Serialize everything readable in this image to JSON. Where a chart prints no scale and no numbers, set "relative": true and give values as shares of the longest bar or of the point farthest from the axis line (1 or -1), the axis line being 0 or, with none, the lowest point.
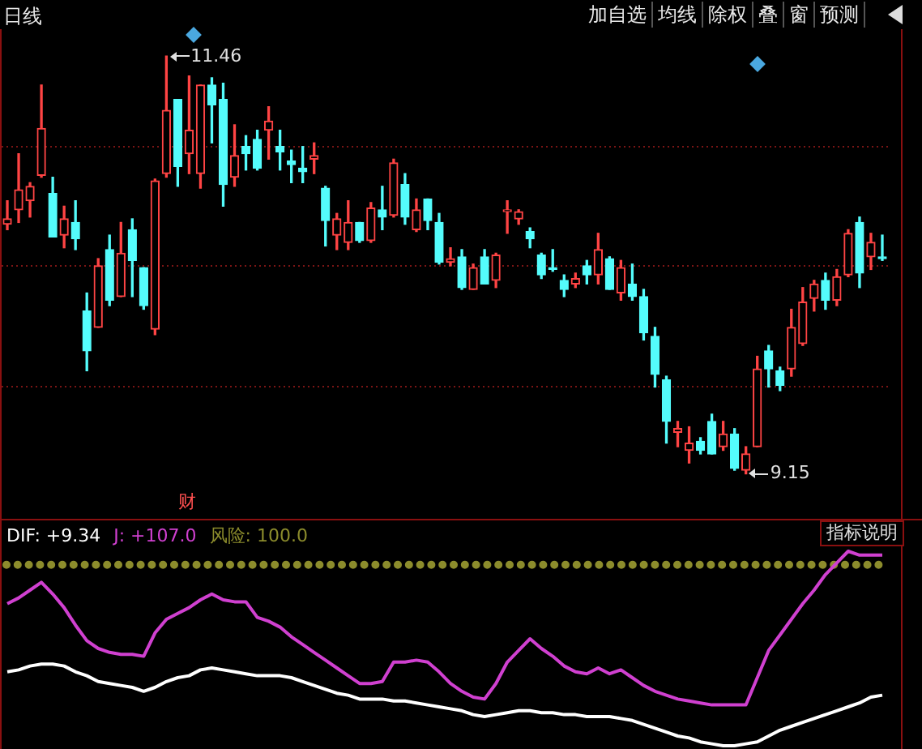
{
  "chart_data": [
    {
      "type": "candlestick",
      "title": "日线",
      "tick_labels": false,
      "grid": "y",
      "categories": [
        null,
        null,
        null,
        null,
        null,
        null,
        null,
        null,
        null,
        null,
        null,
        null,
        null,
        null,
        null,
        null,
        null,
        null,
        null,
        null,
        null,
        null,
        null,
        null,
        null,
        null,
        null,
        null,
        null,
        null,
        null,
        null,
        null,
        null,
        null,
        null,
        null,
        null,
        null,
        null,
        null,
        null,
        null,
        null,
        null,
        null,
        null,
        null,
        null,
        null,
        null,
        null,
        null,
        null,
        null,
        null,
        null,
        null,
        null,
        null,
        null,
        null,
        null,
        null,
        null,
        null,
        null,
        null,
        null,
        null,
        null,
        null,
        null,
        null,
        null,
        null,
        null,
        null
      ],
      "ohlc": [
        [
          10.53,
          10.66,
          10.5,
          10.56
        ],
        [
          10.61,
          10.92,
          10.54,
          10.72
        ],
        [
          10.66,
          10.76,
          10.57,
          10.74
        ],
        [
          10.8,
          11.3,
          10.79,
          11.06
        ],
        [
          10.7,
          10.79,
          10.46,
          10.46
        ],
        [
          10.47,
          10.63,
          10.4,
          10.56
        ],
        [
          10.54,
          10.66,
          10.39,
          10.45
        ],
        [
          10.05,
          10.15,
          9.72,
          9.83
        ],
        [
          9.96,
          10.34,
          9.96,
          10.3
        ],
        [
          10.39,
          10.47,
          10.08,
          10.11
        ],
        [
          10.13,
          10.54,
          10.13,
          10.37
        ],
        [
          10.5,
          10.56,
          10.13,
          10.33
        ],
        [
          10.29,
          10.29,
          10.06,
          10.08
        ],
        [
          9.95,
          10.78,
          9.92,
          10.77
        ],
        [
          10.81,
          11.46,
          10.79,
          11.16
        ],
        [
          11.22,
          11.22,
          10.74,
          10.85
        ],
        [
          10.92,
          11.35,
          10.81,
          11.05
        ],
        [
          10.81,
          11.3,
          10.73,
          11.3
        ],
        [
          11.3,
          11.34,
          10.98,
          11.19
        ],
        [
          11.22,
          11.31,
          10.63,
          10.75
        ],
        [
          10.79,
          11.08,
          10.74,
          10.91
        ],
        [
          10.96,
          11.02,
          10.83,
          10.92
        ],
        [
          11.0,
          11.05,
          10.83,
          10.84
        ],
        [
          11.05,
          11.18,
          10.89,
          11.1
        ],
        [
          10.96,
          11.05,
          10.83,
          10.93
        ],
        [
          10.88,
          10.94,
          10.76,
          10.86
        ],
        [
          10.84,
          10.96,
          10.76,
          10.82
        ],
        [
          10.89,
          10.98,
          10.81,
          10.91
        ],
        [
          10.73,
          10.74,
          10.41,
          10.55
        ],
        [
          10.47,
          10.59,
          10.39,
          10.56
        ],
        [
          10.43,
          10.66,
          10.39,
          10.54
        ],
        [
          10.54,
          10.54,
          10.43,
          10.44
        ],
        [
          10.44,
          10.65,
          10.43,
          10.62
        ],
        [
          10.61,
          10.74,
          10.5,
          10.57
        ],
        [
          10.58,
          10.89,
          10.57,
          10.87
        ],
        [
          10.75,
          10.81,
          10.53,
          10.57
        ],
        [
          10.5,
          10.67,
          10.49,
          10.61
        ],
        [
          10.67,
          10.67,
          10.5,
          10.55
        ],
        [
          10.54,
          10.59,
          10.31,
          10.32
        ],
        [
          10.32,
          10.4,
          10.3,
          10.34
        ],
        [
          10.35,
          10.39,
          10.17,
          10.18
        ],
        [
          10.17,
          10.31,
          10.17,
          10.29
        ],
        [
          10.35,
          10.39,
          10.2,
          10.2
        ],
        [
          10.22,
          10.37,
          10.18,
          10.36
        ],
        [
          10.6,
          10.66,
          10.48,
          10.61
        ],
        [
          10.56,
          10.61,
          10.53,
          10.6
        ],
        [
          10.49,
          10.51,
          10.4,
          10.45
        ],
        [
          10.36,
          10.37,
          10.23,
          10.25
        ],
        [
          10.29,
          10.39,
          10.27,
          10.28
        ],
        [
          10.22,
          10.25,
          10.13,
          10.17
        ],
        [
          10.2,
          10.26,
          10.18,
          10.23
        ],
        [
          10.3,
          10.33,
          10.2,
          10.25
        ],
        [
          10.25,
          10.48,
          10.2,
          10.39
        ],
        [
          10.34,
          10.35,
          10.17,
          10.17
        ],
        [
          10.15,
          10.33,
          10.11,
          10.29
        ],
        [
          10.2,
          10.31,
          10.11,
          10.13
        ],
        [
          10.13,
          10.17,
          9.89,
          9.93
        ],
        [
          9.91,
          9.96,
          9.63,
          9.7
        ],
        [
          9.67,
          9.69,
          9.32,
          9.44
        ],
        [
          9.38,
          9.44,
          9.3,
          9.4
        ],
        [
          9.28,
          9.41,
          9.21,
          9.32
        ],
        [
          9.33,
          9.35,
          9.26,
          9.28
        ],
        [
          9.44,
          9.48,
          9.26,
          9.26
        ],
        [
          9.3,
          9.44,
          9.28,
          9.37
        ],
        [
          9.37,
          9.4,
          9.17,
          9.18
        ],
        [
          9.17,
          9.3,
          9.15,
          9.26
        ],
        [
          9.3,
          9.8,
          9.3,
          9.73
        ],
        [
          9.83,
          9.86,
          9.63,
          9.73
        ],
        [
          9.72,
          9.74,
          9.61,
          9.64
        ],
        [
          9.73,
          10.06,
          9.69,
          9.96
        ],
        [
          9.87,
          10.18,
          9.86,
          10.1
        ],
        [
          10.12,
          10.22,
          10.05,
          10.2
        ],
        [
          10.22,
          10.26,
          10.06,
          10.11
        ],
        [
          10.11,
          10.28,
          10.08,
          10.24
        ],
        [
          10.25,
          10.5,
          10.24,
          10.48
        ],
        [
          10.54,
          10.57,
          10.18,
          10.26
        ],
        [
          10.35,
          10.48,
          10.28,
          10.43
        ],
        [
          10.35,
          10.47,
          10.33,
          10.34
        ]
      ],
      "colors": [
        "#ff4444",
        "#ff4444",
        "#ff4444",
        "#ff4444",
        "#54fcfc",
        "#ff4444",
        "#54fcfc",
        "#54fcfc",
        "#ff4444",
        "#54fcfc",
        "#ff4444",
        "#54fcfc",
        "#54fcfc",
        "#ff4444",
        "#ff4444",
        "#54fcfc",
        "#ff4444",
        "#ff4444",
        "#54fcfc",
        "#54fcfc",
        "#ff4444",
        "#54fcfc",
        "#54fcfc",
        "#ff4444",
        "#54fcfc",
        "#54fcfc",
        "#54fcfc",
        "#ff4444",
        "#54fcfc",
        "#ff4444",
        "#ff4444",
        "#54fcfc",
        "#ff4444",
        "#54fcfc",
        "#ff4444",
        "#54fcfc",
        "#ff4444",
        "#54fcfc",
        "#54fcfc",
        "#ff4444",
        "#54fcfc",
        "#ff4444",
        "#54fcfc",
        "#ff4444",
        "#ff4444",
        "#ff4444",
        "#54fcfc",
        "#54fcfc",
        "#54fcfc",
        "#54fcfc",
        "#ff4444",
        "#54fcfc",
        "#ff4444",
        "#54fcfc",
        "#ff4444",
        "#54fcfc",
        "#54fcfc",
        "#54fcfc",
        "#54fcfc",
        "#ff4444",
        "#ff4444",
        "#54fcfc",
        "#54fcfc",
        "#ff4444",
        "#54fcfc",
        "#ff4444",
        "#ff4444",
        "#54fcfc",
        "#54fcfc",
        "#ff4444",
        "#ff4444",
        "#ff4444",
        "#54fcfc",
        "#ff4444",
        "#ff4444",
        "#54fcfc",
        "#ff4444",
        "#54fcfc"
      ],
      "yticks": [
        {
          "value": 10.96,
          "label": null
        },
        {
          "value": 10.3,
          "label": null
        },
        {
          "value": 9.63,
          "label": null
        }
      ],
      "annotations": [
        "加自选",
        "均线",
        "除权",
        "叠",
        "窗",
        "预测",
        "财",
        "11.46",
        "9.15"
      ]
    },
    {
      "type": "line",
      "relative": true,
      "tick_labels": false,
      "ref_lines": [
        {
          "axis": "y",
          "value": 0.93,
          "color": "#8c8c2c",
          "line_style": "dotted"
        }
      ],
      "categories": [
        null,
        null,
        null,
        null,
        null,
        null,
        null,
        null,
        null,
        null,
        null,
        null,
        null,
        null,
        null,
        null,
        null,
        null,
        null,
        null,
        null,
        null,
        null,
        null,
        null,
        null,
        null,
        null,
        null,
        null,
        null,
        null,
        null,
        null,
        null,
        null,
        null,
        null,
        null,
        null,
        null,
        null,
        null,
        null,
        null,
        null,
        null,
        null,
        null,
        null,
        null,
        null,
        null,
        null,
        null,
        null,
        null,
        null,
        null,
        null,
        null,
        null,
        null,
        null,
        null,
        null,
        null,
        null,
        null,
        null,
        null,
        null,
        null,
        null,
        null,
        null,
        null,
        null
      ],
      "series": [
        {
          "name": "DIF: +9.34",
          "color": "#ffffff",
          "type": "line",
          "values": [
            0.38,
            0.39,
            0.41,
            0.42,
            0.42,
            0.41,
            0.38,
            0.36,
            0.33,
            0.32,
            0.31,
            0.3,
            0.28,
            0.3,
            0.33,
            0.35,
            0.36,
            0.39,
            0.4,
            0.39,
            0.38,
            0.37,
            0.36,
            0.36,
            0.36,
            0.35,
            0.33,
            0.31,
            0.29,
            0.27,
            0.26,
            0.24,
            0.24,
            0.24,
            0.23,
            0.23,
            0.22,
            0.21,
            0.2,
            0.19,
            0.18,
            0.16,
            0.15,
            0.16,
            0.17,
            0.18,
            0.18,
            0.17,
            0.17,
            0.16,
            0.16,
            0.15,
            0.15,
            0.15,
            0.14,
            0.13,
            0.11,
            0.09,
            0.07,
            0.05,
            0.04,
            0.02,
            0.01,
            0,
            0,
            0.01,
            0.02,
            0.05,
            0.08,
            0.1,
            0.12,
            0.14,
            0.16,
            0.18,
            0.2,
            0.22,
            0.25,
            0.26
          ]
        },
        {
          "name": "J: +107.0",
          "color": "#d040d0",
          "type": "line",
          "values": [
            0.73,
            0.76,
            0.8,
            0.84,
            0.78,
            0.71,
            0.62,
            0.54,
            0.5,
            0.48,
            0.47,
            0.47,
            0.46,
            0.58,
            0.65,
            0.68,
            0.71,
            0.75,
            0.78,
            0.75,
            0.74,
            0.74,
            0.66,
            0.64,
            0.61,
            0.56,
            0.52,
            0.48,
            0.44,
            0.4,
            0.36,
            0.32,
            0.32,
            0.33,
            0.43,
            0.43,
            0.44,
            0.43,
            0.38,
            0.32,
            0.28,
            0.25,
            0.24,
            0.32,
            0.43,
            0.49,
            0.55,
            0.5,
            0.46,
            0.41,
            0.38,
            0.37,
            0.4,
            0.37,
            0.39,
            0.35,
            0.31,
            0.28,
            0.26,
            0.24,
            0.23,
            0.22,
            0.21,
            0.21,
            0.21,
            0.21,
            0.35,
            0.49,
            0.57,
            0.65,
            0.73,
            0.8,
            0.88,
            0.94,
            1.0,
            0.98,
            0.98,
            0.98
          ]
        }
      ],
      "annotations": [
        "风险: 100.0",
        "指标说明"
      ]
    }
  ]
}
